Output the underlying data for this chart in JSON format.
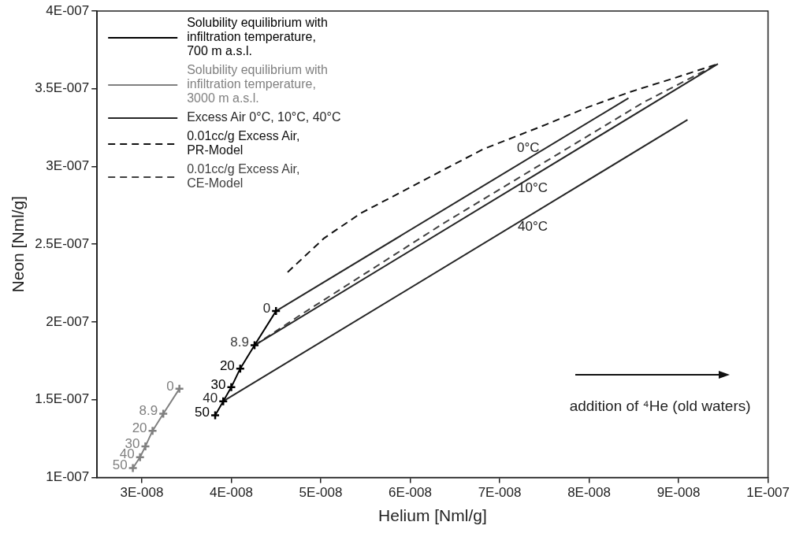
{
  "chart_data": {
    "type": "line",
    "xlabel": "Helium [Nml/g]",
    "ylabel": "Neon [Nml/g]",
    "xlim": [
      2.5e-08,
      1e-07
    ],
    "xticks": [
      {
        "value": 3e-08,
        "label": "3E-008"
      },
      {
        "value": 4e-08,
        "label": "4E-008"
      },
      {
        "value": 5e-08,
        "label": "5E-008"
      },
      {
        "value": 6e-08,
        "label": "6E-008"
      },
      {
        "value": 7e-08,
        "label": "7E-008"
      },
      {
        "value": 8e-08,
        "label": "8E-008"
      },
      {
        "value": 9e-08,
        "label": "9E-008"
      },
      {
        "value": 1e-07,
        "label": "1E-007"
      }
    ],
    "ylim": [
      1e-07,
      4e-07
    ],
    "yticks": [
      {
        "value": 1e-07,
        "label": "1E-007"
      },
      {
        "value": 1.5e-07,
        "label": "1.5E-007"
      },
      {
        "value": 2e-07,
        "label": "2E-007"
      },
      {
        "value": 2.5e-07,
        "label": "2.5E-007"
      },
      {
        "value": 3e-07,
        "label": "3E-007"
      },
      {
        "value": 3.5e-07,
        "label": "3.5E-007"
      },
      {
        "value": 4e-07,
        "label": "4E-007"
      }
    ],
    "grid": false,
    "legend": "top left",
    "series": [
      {
        "name": "Solubility equilibrium with infiltration temperature, 700 m a.s.l.",
        "color": "#000000",
        "marker": "cross",
        "line_style": "solid",
        "x": [
          3.82e-08,
          3.91e-08,
          4e-08,
          4.1e-08,
          4.26e-08,
          4.5e-08
        ],
        "values": [
          1.4e-07,
          1.49e-07,
          1.58e-07,
          1.7e-07,
          1.85e-07,
          2.07e-07
        ]
      },
      {
        "name": "Solubility equilibrium with infiltration temperature, 3000 m a.s.l.",
        "color": "#808080",
        "marker": "cross",
        "line_style": "solid",
        "x": [
          2.9e-08,
          2.98e-08,
          3.04e-08,
          3.12e-08,
          3.24e-08,
          3.42e-08
        ],
        "values": [
          1.06e-07,
          1.13e-07,
          1.2e-07,
          1.3e-07,
          1.41e-07,
          1.57e-07
        ]
      },
      {
        "name": "Excess Air 0°C, 10°C, 40°C",
        "color": "#262626",
        "marker": "none",
        "line_style": "solid",
        "x": [
          4.5e-08,
          8.44e-08
        ],
        "values": [
          2.07e-07,
          3.44e-07
        ]
      },
      {
        "color": "#262626",
        "marker": "none",
        "line_style": "solid",
        "x": [
          4.26e-08,
          9.44e-08
        ],
        "values": [
          1.85e-07,
          3.66e-07
        ]
      },
      {
        "color": "#262626",
        "marker": "none",
        "line_style": "solid",
        "x": [
          3.91e-08,
          9.1e-08
        ],
        "values": [
          1.49e-07,
          3.3e-07
        ]
      },
      {
        "name": "0.01cc/g Excess Air, PR-Model",
        "color": "#111111",
        "marker": "none",
        "line_style": "dashed",
        "x": [
          4.63e-08,
          5.04e-08,
          5.45e-08,
          6.81e-08,
          7.52e-08,
          7.98e-08,
          8.46e-08,
          8.96e-08,
          9.44e-08
        ],
        "values": [
          2.32e-07,
          2.54e-07,
          2.7e-07,
          3.11e-07,
          3.27e-07,
          3.38e-07,
          3.48e-07,
          3.57e-07,
          3.66e-07
        ]
      },
      {
        "name": "0.01cc/g Excess Air, CE-Model",
        "color": "#404040",
        "marker": "none",
        "line_style": "dashed",
        "x": [
          4.26e-08,
          4.76e-08,
          6.36e-08,
          8.6e-08,
          9.44e-08
        ],
        "values": [
          1.85e-07,
          2.04e-07,
          2.63e-07,
          3.41e-07,
          3.66e-07
        ]
      }
    ],
    "annotations": [
      {
        "text": "50",
        "x": 3.82e-08,
        "y": 1.4e-07
      },
      {
        "text": "40",
        "x": 3.91e-08,
        "y": 1.49e-07
      },
      {
        "text": "30",
        "x": 4e-08,
        "y": 1.58e-07
      },
      {
        "text": "20",
        "x": 4.1e-08,
        "y": 1.7e-07
      },
      {
        "text": "8.9",
        "x": 4.26e-08,
        "y": 1.85e-07
      },
      {
        "text": "0",
        "x": 4.5e-08,
        "y": 2.07e-07
      },
      {
        "text": "50",
        "x": 2.9e-08,
        "y": 1.06e-07
      },
      {
        "text": "40",
        "x": 2.98e-08,
        "y": 1.13e-07
      },
      {
        "text": "30",
        "x": 3.04e-08,
        "y": 1.2e-07
      },
      {
        "text": "20",
        "x": 3.12e-08,
        "y": 1.3e-07
      },
      {
        "text": "8.9",
        "x": 3.24e-08,
        "y": 1.41e-07
      },
      {
        "text": "0",
        "x": 3.42e-08,
        "y": 1.57e-07
      },
      {
        "text": "0°C",
        "x": 7.32e-08,
        "y": 3.05e-07
      },
      {
        "text": "10°C",
        "x": 7.37e-08,
        "y": 2.94e-07
      },
      {
        "text": "40°C",
        "x": 7.37e-08,
        "y": 2.69e-07
      },
      "addition of ⁴He (old waters)"
    ]
  }
}
